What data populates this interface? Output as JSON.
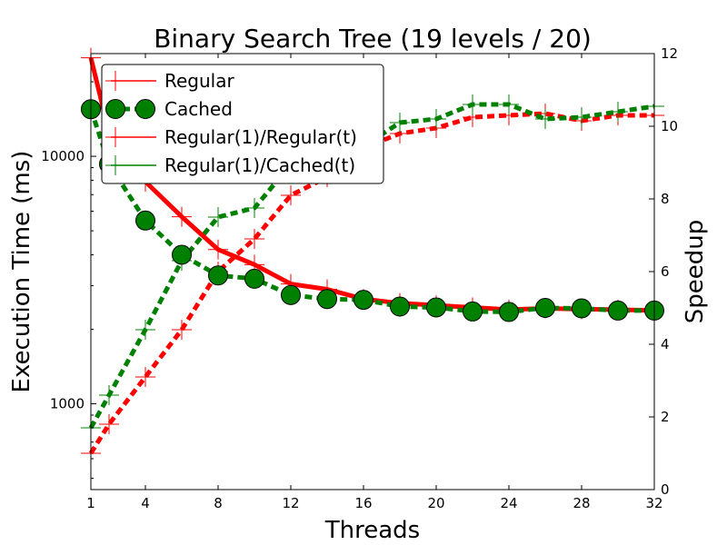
{
  "chart_data": {
    "type": "line",
    "title": "Binary Search Tree (19 levels / 20)",
    "xlabel": "Threads",
    "ylabel_left": "Execution Time (ms)",
    "ylabel_right": "Speedup",
    "xlim": [
      1,
      32
    ],
    "ylim_left": [
      450,
      26000
    ],
    "yscale_left": "log",
    "ylim_right": [
      0,
      12
    ],
    "x_ticks": [
      1,
      4,
      8,
      12,
      16,
      20,
      24,
      28,
      32
    ],
    "y_left_ticks": [
      {
        "value": 1000,
        "label": "1000"
      },
      {
        "value": 10000,
        "label": "10000"
      }
    ],
    "y_right_ticks": [
      0,
      2,
      4,
      6,
      8,
      10,
      12
    ],
    "grid": false,
    "legend_position": "top-left",
    "series": [
      {
        "name": "Regular",
        "axis": "left",
        "color": "#ff0000",
        "line": "solid",
        "marker": "plus",
        "x": [
          1,
          2,
          4,
          6,
          8,
          10,
          12,
          14,
          16,
          18,
          20,
          22,
          24,
          26,
          28,
          30,
          32
        ],
        "y": [
          25000,
          12500,
          7900,
          5700,
          4200,
          3650,
          3050,
          2900,
          2650,
          2550,
          2500,
          2450,
          2400,
          2430,
          2410,
          2400,
          2380
        ]
      },
      {
        "name": "Cached",
        "axis": "left",
        "color": "#008000",
        "line": "dashed",
        "marker": "circle",
        "x": [
          1,
          2,
          4,
          6,
          8,
          10,
          12,
          14,
          16,
          18,
          20,
          22,
          24,
          26,
          28,
          30,
          32
        ],
        "y": [
          15500,
          9300,
          5500,
          4000,
          3300,
          3200,
          2750,
          2650,
          2630,
          2470,
          2450,
          2360,
          2350,
          2440,
          2430,
          2380,
          2380
        ]
      },
      {
        "name": "Regular(1)/Regular(t)",
        "axis": "right",
        "color": "#ff0000",
        "line": "dashed",
        "marker": "plus",
        "x": [
          1,
          2,
          4,
          6,
          8,
          10,
          12,
          14,
          16,
          18,
          20,
          22,
          24,
          26,
          28,
          30,
          32
        ],
        "y": [
          1.0,
          1.8,
          3.1,
          4.4,
          6.0,
          6.9,
          8.1,
          8.6,
          9.4,
          9.8,
          9.95,
          10.25,
          10.3,
          10.35,
          10.15,
          10.3,
          10.3
        ]
      },
      {
        "name": "Regular(1)/Cached(t)",
        "axis": "right",
        "color": "#008000",
        "line": "dashed",
        "marker": "plus",
        "x": [
          1,
          2,
          4,
          6,
          8,
          10,
          12,
          14,
          16,
          18,
          20,
          22,
          24,
          26,
          28,
          30,
          32
        ],
        "y": [
          1.7,
          2.6,
          4.4,
          6.3,
          7.5,
          7.75,
          8.95,
          9.4,
          9.45,
          10.1,
          10.2,
          10.6,
          10.6,
          10.2,
          10.25,
          10.4,
          10.55
        ]
      }
    ]
  }
}
